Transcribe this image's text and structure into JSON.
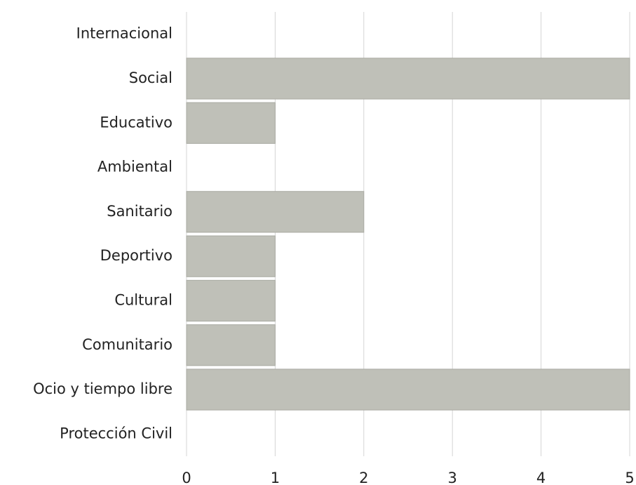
{
  "chart_data": {
    "type": "hbar",
    "categories": [
      "Internacional",
      "Social",
      "Educativo",
      "Ambiental",
      "Sanitario",
      "Deportivo",
      "Cultural",
      "Comunitario",
      "Ocio y tiempo libre",
      "Protección Civil"
    ],
    "values": [
      0,
      5,
      1,
      0,
      2,
      1,
      1,
      1,
      5,
      0
    ],
    "color": "#bfc0b8",
    "xlim": [
      0,
      5
    ],
    "xticks": [
      0,
      1,
      2,
      3,
      4,
      5
    ],
    "grid": true
  }
}
